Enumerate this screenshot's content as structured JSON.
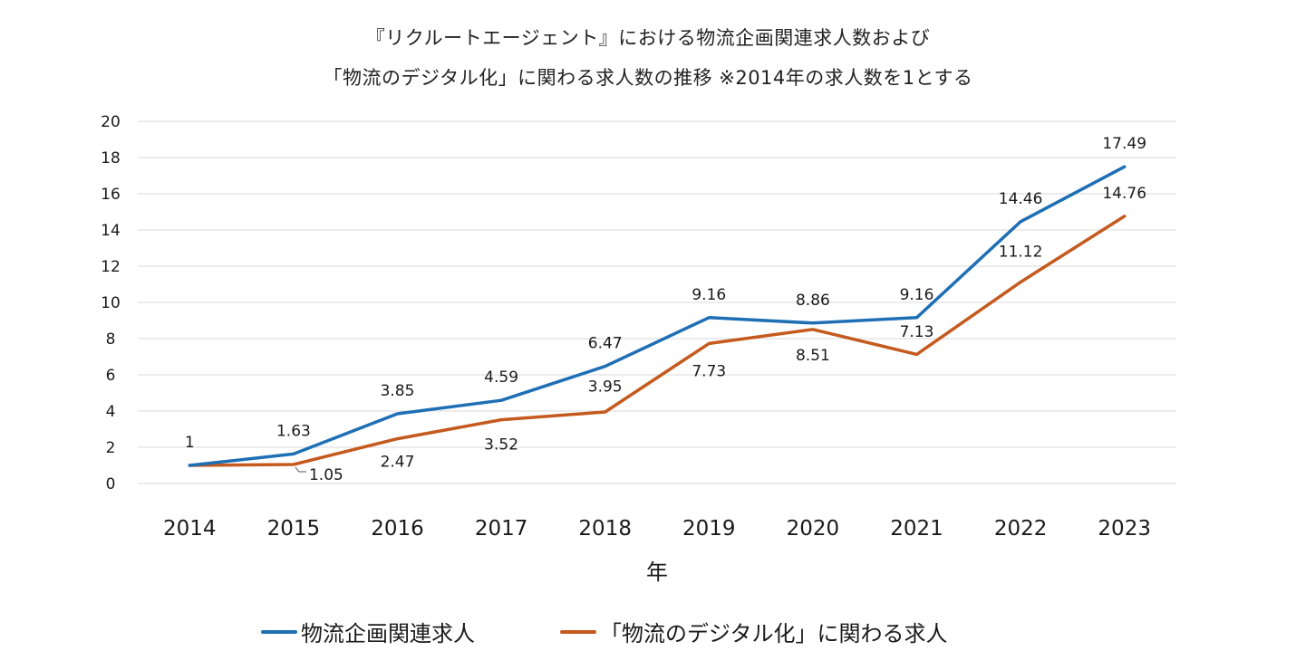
{
  "chart_data": {
    "type": "line",
    "title_line1": "『リクルートエージェント』における物流企画関連求人数および",
    "title_line2": "「物流のデジタル化」に関わる求人数の推移 ※2014年の求人数を1とする",
    "xlabel": "年",
    "ylabel": "",
    "categories": [
      "2014",
      "2015",
      "2016",
      "2017",
      "2018",
      "2019",
      "2020",
      "2021",
      "2022",
      "2023"
    ],
    "ylim": [
      0,
      20
    ],
    "yticks": [
      "0",
      "2",
      "4",
      "6",
      "8",
      "10",
      "12",
      "14",
      "16",
      "18",
      "20"
    ],
    "grid": true,
    "legend_position": "bottom",
    "series": [
      {
        "name": "物流企画関連求人",
        "color": "#1f6fb5",
        "values": [
          1,
          1.63,
          3.85,
          4.59,
          6.47,
          9.16,
          8.86,
          9.16,
          14.46,
          17.49
        ],
        "labels": [
          "1",
          "1.63",
          "3.85",
          "4.59",
          "6.47",
          "9.16",
          "8.86",
          "9.16",
          "14.46",
          "17.49"
        ]
      },
      {
        "name": "「物流のデジタル化」に関わる求人",
        "color": "#c55a1e",
        "values": [
          1,
          1.05,
          2.47,
          3.52,
          3.95,
          7.73,
          8.51,
          7.13,
          11.12,
          14.76
        ],
        "labels": [
          "",
          "1.05",
          "2.47",
          "3.52",
          "3.95",
          "7.73",
          "8.51",
          "7.13",
          "11.12",
          "14.76"
        ]
      }
    ]
  }
}
